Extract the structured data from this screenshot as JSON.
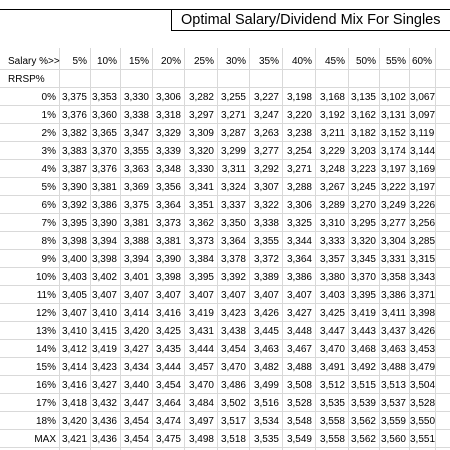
{
  "title": "Optimal Salary/Dividend Mix For Singles",
  "salary_header": "Salary %>>",
  "rrsp_header": "RRSP%",
  "salary_columns": [
    "5%",
    "10%",
    "15%",
    "20%",
    "25%",
    "30%",
    "35%",
    "40%",
    "45%",
    "50%",
    "55%",
    "60%",
    "65"
  ],
  "rows": [
    {
      "label": "0%",
      "values": [
        "3,375",
        "3,353",
        "3,330",
        "3,306",
        "3,282",
        "3,255",
        "3,227",
        "3,198",
        "3,168",
        "3,135",
        "3,102",
        "3,067",
        "3,0"
      ]
    },
    {
      "label": "1%",
      "values": [
        "3,376",
        "3,360",
        "3,338",
        "3,318",
        "3,297",
        "3,271",
        "3,247",
        "3,220",
        "3,192",
        "3,162",
        "3,131",
        "3,097",
        "3,0"
      ]
    },
    {
      "label": "2%",
      "values": [
        "3,382",
        "3,365",
        "3,347",
        "3,329",
        "3,309",
        "3,287",
        "3,263",
        "3,238",
        "3,211",
        "3,182",
        "3,152",
        "3,119",
        "3,0"
      ]
    },
    {
      "label": "3%",
      "values": [
        "3,383",
        "3,370",
        "3,355",
        "3,339",
        "3,320",
        "3,299",
        "3,277",
        "3,254",
        "3,229",
        "3,203",
        "3,174",
        "3,144",
        "3,1"
      ]
    },
    {
      "label": "4%",
      "values": [
        "3,387",
        "3,376",
        "3,363",
        "3,348",
        "3,330",
        "3,311",
        "3,292",
        "3,271",
        "3,248",
        "3,223",
        "3,197",
        "3,169",
        "3,1"
      ]
    },
    {
      "label": "5%",
      "values": [
        "3,390",
        "3,381",
        "3,369",
        "3,356",
        "3,341",
        "3,324",
        "3,307",
        "3,288",
        "3,267",
        "3,245",
        "3,222",
        "3,197",
        "3,1"
      ]
    },
    {
      "label": "6%",
      "values": [
        "3,392",
        "3,386",
        "3,375",
        "3,364",
        "3,351",
        "3,337",
        "3,322",
        "3,306",
        "3,289",
        "3,270",
        "3,249",
        "3,226",
        "3,2"
      ]
    },
    {
      "label": "7%",
      "values": [
        "3,395",
        "3,390",
        "3,381",
        "3,373",
        "3,362",
        "3,350",
        "3,338",
        "3,325",
        "3,310",
        "3,295",
        "3,277",
        "3,256",
        "3,2"
      ]
    },
    {
      "label": "8%",
      "values": [
        "3,398",
        "3,394",
        "3,388",
        "3,381",
        "3,373",
        "3,364",
        "3,355",
        "3,344",
        "3,333",
        "3,320",
        "3,304",
        "3,285",
        "3,2"
      ]
    },
    {
      "label": "9%",
      "values": [
        "3,400",
        "3,398",
        "3,394",
        "3,390",
        "3,384",
        "3,378",
        "3,372",
        "3,364",
        "3,357",
        "3,345",
        "3,331",
        "3,315",
        "3,2"
      ]
    },
    {
      "label": "10%",
      "values": [
        "3,403",
        "3,402",
        "3,401",
        "3,398",
        "3,395",
        "3,392",
        "3,389",
        "3,386",
        "3,380",
        "3,370",
        "3,358",
        "3,343",
        "3,3"
      ]
    },
    {
      "label": "11%",
      "values": [
        "3,405",
        "3,407",
        "3,407",
        "3,407",
        "3,407",
        "3,407",
        "3,407",
        "3,407",
        "3,403",
        "3,395",
        "3,386",
        "3,371",
        "3,3"
      ]
    },
    {
      "label": "12%",
      "values": [
        "3,407",
        "3,410",
        "3,414",
        "3,416",
        "3,419",
        "3,423",
        "3,426",
        "3,427",
        "3,425",
        "3,419",
        "3,411",
        "3,398",
        "3,3"
      ]
    },
    {
      "label": "13%",
      "values": [
        "3,410",
        "3,415",
        "3,420",
        "3,425",
        "3,431",
        "3,438",
        "3,445",
        "3,448",
        "3,447",
        "3,443",
        "3,437",
        "3,426",
        "3,4"
      ]
    },
    {
      "label": "14%",
      "values": [
        "3,412",
        "3,419",
        "3,427",
        "3,435",
        "3,444",
        "3,454",
        "3,463",
        "3,467",
        "3,470",
        "3,468",
        "3,463",
        "3,453",
        "3,4"
      ]
    },
    {
      "label": "15%",
      "values": [
        "3,414",
        "3,423",
        "3,434",
        "3,444",
        "3,457",
        "3,470",
        "3,482",
        "3,488",
        "3,491",
        "3,492",
        "3,488",
        "3,479",
        "3,4"
      ]
    },
    {
      "label": "16%",
      "values": [
        "3,416",
        "3,427",
        "3,440",
        "3,454",
        "3,470",
        "3,486",
        "3,499",
        "3,508",
        "3,512",
        "3,515",
        "3,513",
        "3,504",
        "3,4"
      ]
    },
    {
      "label": "17%",
      "values": [
        "3,418",
        "3,432",
        "3,447",
        "3,464",
        "3,484",
        "3,502",
        "3,516",
        "3,528",
        "3,535",
        "3,539",
        "3,537",
        "3,528",
        "3,5"
      ]
    },
    {
      "label": "18%",
      "values": [
        "3,420",
        "3,436",
        "3,454",
        "3,474",
        "3,497",
        "3,517",
        "3,534",
        "3,548",
        "3,558",
        "3,562",
        "3,559",
        "3,550",
        "3,5"
      ]
    },
    {
      "label": "MAX",
      "values": [
        "3,421",
        "3,436",
        "3,454",
        "3,475",
        "3,498",
        "3,518",
        "3,535",
        "3,549",
        "3,558",
        "3,562",
        "3,560",
        "3,551",
        "3,5"
      ]
    }
  ]
}
